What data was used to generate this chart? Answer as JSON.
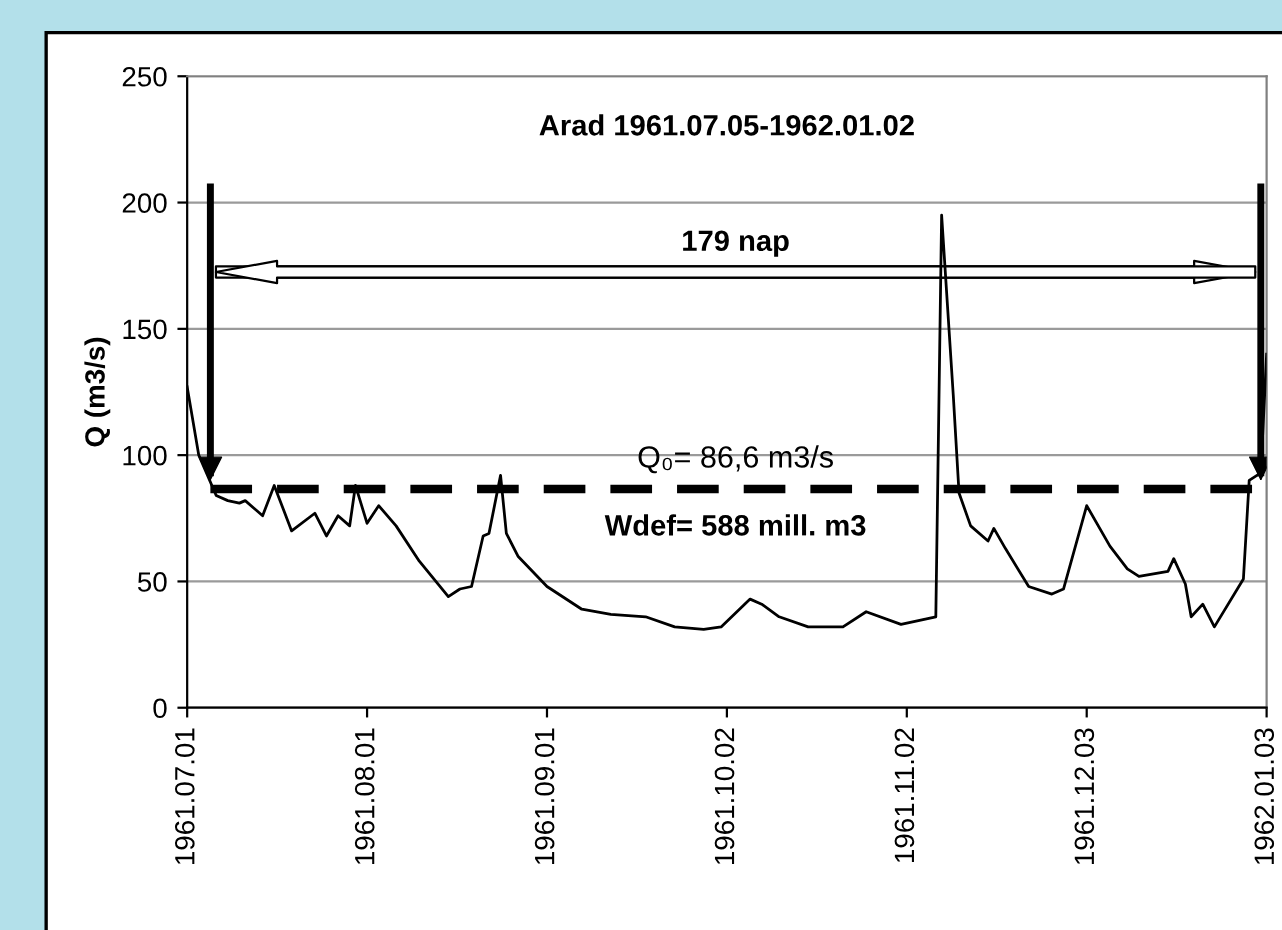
{
  "chart_data": {
    "type": "line",
    "title": "Arad 1961.07.05-1962.01.02",
    "ylabel": "Q (m3/s)",
    "x": [
      "1961-07-01",
      "1961-07-03",
      "1961-07-06",
      "1961-07-08",
      "1961-07-10",
      "1961-07-11",
      "1961-07-14",
      "1961-07-16",
      "1961-07-19",
      "1961-07-23",
      "1961-07-25",
      "1961-07-27",
      "1961-07-29",
      "1961-07-30",
      "1961-08-01",
      "1961-08-03",
      "1961-08-06",
      "1961-08-10",
      "1961-08-15",
      "1961-08-17",
      "1961-08-19",
      "1961-08-21",
      "1961-08-22",
      "1961-08-24",
      "1961-08-25",
      "1961-08-27",
      "1961-09-01",
      "1961-09-07",
      "1961-09-12",
      "1961-09-18",
      "1961-09-23",
      "1961-09-28",
      "1961-10-01",
      "1961-10-06",
      "1961-10-08",
      "1961-10-11",
      "1961-10-16",
      "1961-10-22",
      "1961-10-26",
      "1961-11-01",
      "1961-11-07",
      "1961-11-08",
      "1961-11-10",
      "1961-11-11",
      "1961-11-13",
      "1961-11-16",
      "1961-11-17",
      "1961-11-19",
      "1961-11-23",
      "1961-11-27",
      "1961-11-29",
      "1961-12-03",
      "1961-12-07",
      "1961-12-10",
      "1961-12-12",
      "1961-12-17",
      "1961-12-18",
      "1961-12-20",
      "1961-12-21",
      "1961-12-23",
      "1961-12-25",
      "1961-12-30",
      "1961-12-31",
      "1962-01-02",
      "1962-01-03"
    ],
    "series": [
      {
        "color": "#000000",
        "values": [
          127,
          100,
          84,
          82,
          81,
          82,
          76,
          88,
          70,
          77,
          68,
          76,
          72,
          88,
          73,
          80,
          72,
          58,
          44,
          47,
          48,
          68,
          69,
          92,
          69,
          60,
          48,
          39,
          37,
          36,
          32,
          31,
          32,
          43,
          41,
          36,
          32,
          32,
          38,
          33,
          36,
          195,
          124,
          85,
          72,
          66,
          71,
          63,
          48,
          45,
          47,
          80,
          64,
          55,
          52,
          54,
          59,
          49,
          36,
          41,
          32,
          51,
          90,
          93,
          140
        ]
      }
    ],
    "xlim": [
      "1961-07-01",
      "1962-01-03"
    ],
    "xticks": [
      {
        "value": "1961-07-01",
        "label": "1961.07.01"
      },
      {
        "value": "1961-08-01",
        "label": "1961.08.01"
      },
      {
        "value": "1961-09-01",
        "label": "1961.09.01"
      },
      {
        "value": "1961-10-02",
        "label": "1961.10.02"
      },
      {
        "value": "1961-11-02",
        "label": "1961.11.02"
      },
      {
        "value": "1961-12-03",
        "label": "1961.12.03"
      },
      {
        "value": "1962-01-03",
        "label": "1962.01.03"
      }
    ],
    "ylim": [
      0,
      250
    ],
    "yticks": [
      0,
      50,
      100,
      150,
      200,
      250
    ],
    "grid": "y",
    "marker": "none",
    "line_style": "solid",
    "ref_lines": [
      {
        "axis": "y",
        "value": 86.6,
        "label": "Q₀= 86,6 m3/s",
        "color": "#000000",
        "line_style": "dashed"
      },
      {
        "axis": "x",
        "value": "1961-07-05",
        "color": "#000000"
      },
      {
        "axis": "x",
        "value": "1962-01-02",
        "color": "#000000"
      }
    ],
    "annotations": [
      "179 nap",
      "Wdef= 588 mill. m3"
    ]
  }
}
